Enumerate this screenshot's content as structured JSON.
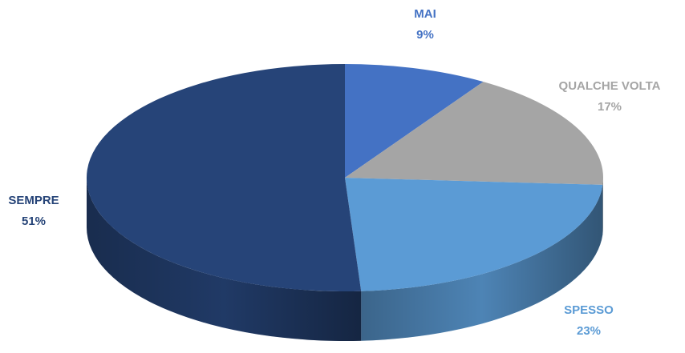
{
  "chart_data": {
    "type": "pie",
    "categories": [
      "MAI",
      "QUALCHE VOLTA",
      "SPESSO",
      "SEMPRE"
    ],
    "values": [
      9,
      17,
      23,
      51
    ],
    "value_labels": [
      "9%",
      "17%",
      "23%",
      "51%"
    ],
    "colors": [
      "#4472c4",
      "#a5a5a5",
      "#5b9bd5",
      "#264478"
    ]
  }
}
